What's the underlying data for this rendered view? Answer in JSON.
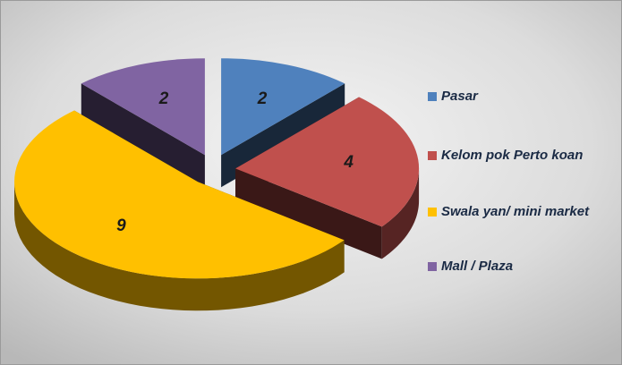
{
  "chart_data": {
    "type": "pie3d",
    "categories": [
      "Pasar",
      "Kelom pok Perto koan",
      "Swala yan/ mini market",
      "Mall / Plaza"
    ],
    "values": [
      2,
      4,
      9,
      2
    ],
    "colors": [
      "#4f81bd",
      "#c0504d",
      "#ffc000",
      "#8064a2"
    ],
    "legend": "right"
  }
}
